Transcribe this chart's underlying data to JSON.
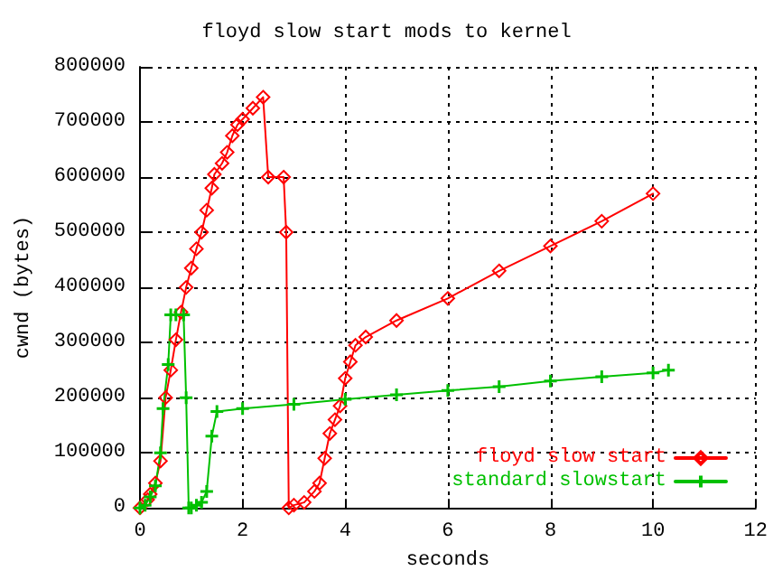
{
  "chart_data": {
    "type": "line",
    "title": "floyd slow start mods to kernel",
    "xlabel": "seconds",
    "ylabel": "cwnd (bytes)",
    "xlim": [
      0,
      12
    ],
    "xticks": [
      0,
      2,
      4,
      6,
      8,
      10,
      12
    ],
    "ylim": [
      0,
      800000
    ],
    "yticks": [
      0,
      100000,
      200000,
      300000,
      400000,
      500000,
      600000,
      700000,
      800000
    ],
    "grid": true,
    "legend": "bottom right",
    "series": [
      {
        "name": "floyd slow start",
        "color": "#ff0000",
        "marker": "diamond",
        "x": [
          0,
          0.15,
          0.2,
          0.3,
          0.4,
          0.5,
          0.6,
          0.7,
          0.8,
          0.9,
          1.0,
          1.1,
          1.2,
          1.3,
          1.4,
          1.45,
          1.6,
          1.7,
          1.8,
          1.9,
          2.0,
          2.2,
          2.4,
          2.5,
          2.8,
          2.85,
          2.9,
          3.0,
          3.2,
          3.4,
          3.5,
          3.6,
          3.7,
          3.8,
          3.9,
          4.0,
          4.1,
          4.2,
          4.4,
          5.0,
          6.0,
          7.0,
          8.0,
          9.0,
          10.0
        ],
        "values": [
          0,
          15000,
          25000,
          45000,
          85000,
          200000,
          250000,
          305000,
          355000,
          400000,
          435000,
          470000,
          500000,
          540000,
          580000,
          605000,
          625000,
          645000,
          675000,
          695000,
          705000,
          725000,
          745000,
          600000,
          600000,
          500000,
          0,
          5000,
          10000,
          30000,
          45000,
          90000,
          135000,
          160000,
          185000,
          235000,
          265000,
          295000,
          310000,
          340000,
          380000,
          430000,
          475000,
          520000,
          570000
        ]
      },
      {
        "name": "standard slowstart",
        "color": "#00c000",
        "marker": "cross",
        "x": [
          0,
          0.1,
          0.2,
          0.3,
          0.4,
          0.45,
          0.55,
          0.6,
          0.7,
          0.85,
          0.9,
          0.95,
          1.0,
          1.1,
          1.2,
          1.3,
          1.4,
          1.5,
          2.0,
          3.0,
          4.0,
          5.0,
          6.0,
          7.0,
          8.0,
          9.0,
          10.0,
          10.3
        ],
        "values": [
          0,
          5000,
          20000,
          40000,
          100000,
          180000,
          260000,
          350000,
          350000,
          350000,
          200000,
          0,
          0,
          5000,
          10000,
          30000,
          130000,
          175000,
          180000,
          188000,
          197000,
          205000,
          213000,
          220000,
          230000,
          238000,
          245000,
          250000
        ]
      }
    ]
  }
}
